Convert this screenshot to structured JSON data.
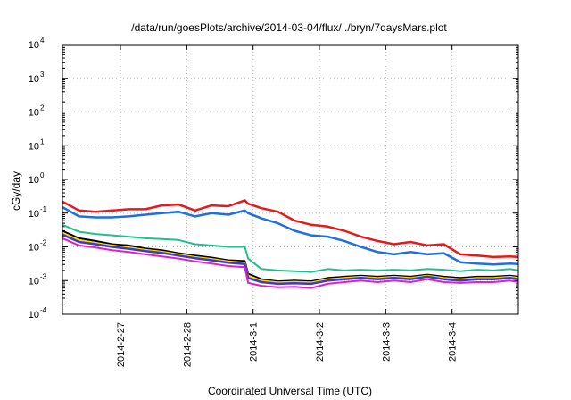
{
  "chart_data": {
    "type": "line",
    "title": "/data/run/goesPlots/archive/2014-03-04/flux/../bryn/7daysMars.plot",
    "xlabel": "Coordinated Universal Time (UTC)",
    "ylabel": "cGy/day",
    "yscale": "log",
    "ylim": [
      0.0001,
      10000
    ],
    "y_ticks": [
      {
        "base": "10",
        "exp": "-4"
      },
      {
        "base": "10",
        "exp": "-3"
      },
      {
        "base": "10",
        "exp": "-2"
      },
      {
        "base": "10",
        "exp": "-1"
      },
      {
        "base": "10",
        "exp": "0"
      },
      {
        "base": "10",
        "exp": "1"
      },
      {
        "base": "10",
        "exp": "2"
      },
      {
        "base": "10",
        "exp": "3"
      },
      {
        "base": "10",
        "exp": "4"
      }
    ],
    "xlim": [
      "2014-02-26T03:00",
      "2014-03-05T00:00"
    ],
    "x_ticks": [
      "2014-2-27",
      "2014-2-28",
      "2014-3-1",
      "2014-3-2",
      "2014-3-3",
      "2014-3-4"
    ],
    "grid": true,
    "x_days": [
      0.0,
      0.25,
      0.5,
      0.75,
      1.0,
      1.25,
      1.5,
      1.75,
      2.0,
      2.25,
      2.5,
      2.75,
      2.8,
      3.0,
      3.25,
      3.5,
      3.75,
      4.0,
      4.25,
      4.5,
      4.75,
      5.0,
      5.25,
      5.5,
      5.75,
      6.0,
      6.25,
      6.5,
      6.75,
      6.875
    ],
    "series": [
      {
        "color": "#e41a1c",
        "width": 2.5,
        "values": [
          0.22,
          0.12,
          0.11,
          0.12,
          0.13,
          0.13,
          0.17,
          0.18,
          0.12,
          0.17,
          0.16,
          0.24,
          0.19,
          0.14,
          0.11,
          0.06,
          0.045,
          0.04,
          0.03,
          0.02,
          0.015,
          0.012,
          0.014,
          0.011,
          0.012,
          0.006,
          0.0055,
          0.005,
          0.0052,
          0.005
        ]
      },
      {
        "color": "#1f6fe0",
        "width": 2.5,
        "values": [
          0.15,
          0.08,
          0.075,
          0.075,
          0.08,
          0.09,
          0.1,
          0.11,
          0.08,
          0.1,
          0.09,
          0.12,
          0.1,
          0.07,
          0.05,
          0.03,
          0.022,
          0.02,
          0.015,
          0.01,
          0.007,
          0.006,
          0.007,
          0.006,
          0.0065,
          0.0035,
          0.0032,
          0.003,
          0.0032,
          0.0031
        ]
      },
      {
        "color": "#1fbf8f",
        "width": 2,
        "values": [
          0.045,
          0.028,
          0.024,
          0.022,
          0.02,
          0.018,
          0.017,
          0.016,
          0.012,
          0.011,
          0.01,
          0.01,
          0.0045,
          0.0022,
          0.002,
          0.0019,
          0.0018,
          0.0022,
          0.002,
          0.0021,
          0.002,
          0.0021,
          0.002,
          0.0022,
          0.0021,
          0.0019,
          0.0021,
          0.002,
          0.0022,
          0.002
        ]
      },
      {
        "color": "#000000",
        "width": 2,
        "values": [
          0.03,
          0.018,
          0.015,
          0.012,
          0.011,
          0.009,
          0.008,
          0.0065,
          0.0055,
          0.0048,
          0.004,
          0.0038,
          0.0016,
          0.0011,
          0.00095,
          0.001,
          0.00095,
          0.0012,
          0.0013,
          0.0014,
          0.0013,
          0.0014,
          0.0013,
          0.0015,
          0.0013,
          0.0012,
          0.0013,
          0.0013,
          0.0014,
          0.0013
        ]
      },
      {
        "color": "#ffd700",
        "width": 2,
        "values": [
          0.026,
          0.016,
          0.013,
          0.011,
          0.0095,
          0.0082,
          0.0072,
          0.006,
          0.005,
          0.0044,
          0.0037,
          0.0034,
          0.0014,
          0.001,
          0.00088,
          0.00092,
          0.00088,
          0.0011,
          0.0012,
          0.0013,
          0.0012,
          0.0013,
          0.0012,
          0.0014,
          0.0012,
          0.0011,
          0.0012,
          0.0012,
          0.0013,
          0.0012
        ]
      },
      {
        "color": "#3a3ad0",
        "width": 2.5,
        "values": [
          0.023,
          0.014,
          0.012,
          0.01,
          0.0088,
          0.0075,
          0.0066,
          0.0055,
          0.0046,
          0.004,
          0.0034,
          0.0031,
          0.0012,
          0.0009,
          0.0008,
          0.00083,
          0.0008,
          0.001,
          0.0011,
          0.0012,
          0.0011,
          0.0012,
          0.0011,
          0.0013,
          0.0011,
          0.001,
          0.0011,
          0.0011,
          0.0012,
          0.0011
        ]
      },
      {
        "color": "#e020c0",
        "width": 2,
        "values": [
          0.018,
          0.011,
          0.0095,
          0.008,
          0.007,
          0.006,
          0.0052,
          0.0045,
          0.0037,
          0.0032,
          0.0027,
          0.0025,
          0.00085,
          0.0007,
          0.00063,
          0.00065,
          0.0006,
          0.0008,
          0.0009,
          0.001,
          0.0009,
          0.001,
          0.0009,
          0.0011,
          0.0009,
          0.00085,
          0.0009,
          0.0009,
          0.001,
          0.0009
        ]
      }
    ]
  }
}
